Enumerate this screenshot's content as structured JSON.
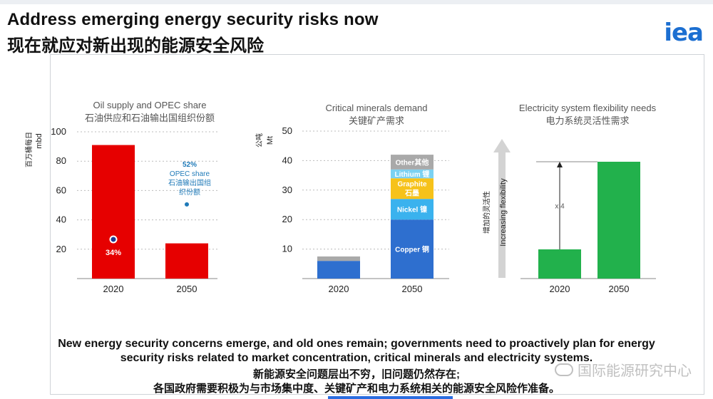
{
  "header": {
    "title_en": "Address emerging energy security risks now",
    "title_zh": "现在就应对新出现的能源安全风险",
    "logo": "iea"
  },
  "colors": {
    "red": "#e60000",
    "green": "#22b14c",
    "copper": "#2e6fcf",
    "nickel": "#3ab2ee",
    "graphite": "#f6c21a",
    "lithium": "#7bd1f2",
    "other": "#a9a9a9",
    "arrow": "#d3d3d3",
    "annotation": "#1f7ab8"
  },
  "chart_data": [
    {
      "type": "bar",
      "title": "Oil supply and OPEC share",
      "subtitle": "石油供应和石油输出国组织份额",
      "ylabel_zh": "百万桶每日",
      "ylabel": "mbd",
      "categories": [
        "2020",
        "2050"
      ],
      "values": [
        91,
        24
      ],
      "yticks": [
        20,
        40,
        60,
        80,
        100
      ],
      "ylim": [
        0,
        100
      ],
      "grid": true,
      "opec_share": {
        "2020": {
          "value": 34,
          "label": "34%",
          "marker_y": 34
        },
        "2050": {
          "value": 52,
          "label_pct": "52%",
          "label_en": "OPEC share",
          "label_zh_1": "石油输出国组",
          "label_zh_2": "织份额",
          "marker_y": 52
        }
      }
    },
    {
      "type": "bar",
      "stacked": true,
      "title": "Critical minerals demand",
      "subtitle": "关键矿产需求",
      "ylabel_zh": "公吨",
      "ylabel": "Mt",
      "categories": [
        "2020",
        "2050"
      ],
      "yticks": [
        10,
        20,
        30,
        40,
        50
      ],
      "ylim": [
        0,
        50
      ],
      "grid": true,
      "series": [
        {
          "name": "Copper 铜",
          "values": [
            6,
            20
          ]
        },
        {
          "name": "Nickel 镍",
          "values": [
            0,
            7
          ]
        },
        {
          "name_en": "Graphite",
          "name_zh": "石墨",
          "values": [
            0,
            7
          ]
        },
        {
          "name": "Lithium 锂",
          "values": [
            0,
            3
          ]
        },
        {
          "name": "Other其他",
          "values": [
            1.5,
            5
          ]
        }
      ]
    },
    {
      "type": "bar",
      "title": "Electricity system flexibility needs",
      "subtitle": "电力系统灵活性需求",
      "ylabel_zh": "增加的灵活性",
      "ylabel": "Increasing flexibility",
      "categories": [
        "2020",
        "2050"
      ],
      "values": [
        1,
        4
      ],
      "multiplier_label": "x 4"
    }
  ],
  "caption": {
    "line1_en": "New energy security concerns emerge, and old ones remain; governments need to proactively plan for energy",
    "line2_en": "security risks related to market concentration, critical minerals and electricity systems.",
    "line1_zh": "新能源安全问题层出不穷，旧问题仍然存在;",
    "line2_zh": "各国政府需要积极为与市场集中度、关键矿产和电力系统相关的能源安全风险作准备。"
  },
  "watermark": "国际能源研究中心"
}
